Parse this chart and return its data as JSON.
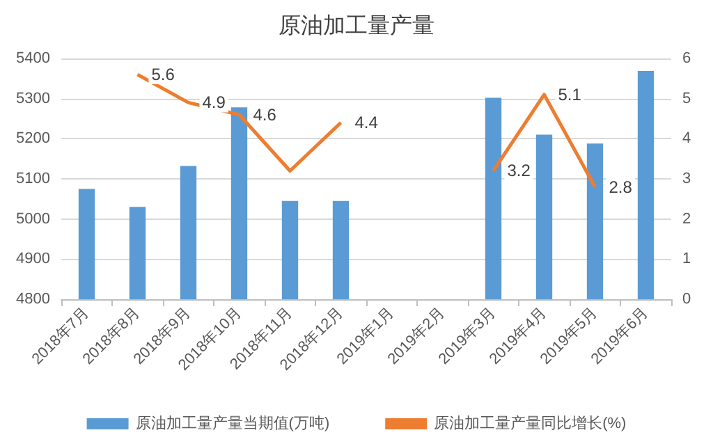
{
  "chart_data": {
    "type": "bar",
    "title": "原油加工量产量",
    "categories": [
      "2018年7月",
      "2018年8月",
      "2018年9月",
      "2018年10月",
      "2018年11月",
      "2018年12月",
      "2019年1月",
      "2019年2月",
      "2019年3月",
      "2019年4月",
      "2019年5月",
      "2019年6月"
    ],
    "series": [
      {
        "name": "原油加工量产量当期值(万吨)",
        "color": "#5b9bd5",
        "values": [
          5075,
          5030,
          5132,
          5278,
          5045,
          5045,
          null,
          null,
          5302,
          5210,
          5188,
          5369
        ]
      },
      {
        "name": "原油加工量产量同比增长(%)",
        "type": "line",
        "axis": "y2",
        "color": "#ed7d31",
        "values": [
          null,
          5.6,
          4.9,
          4.6,
          3.2,
          4.4,
          null,
          null,
          3.2,
          5.1,
          2.8,
          null
        ],
        "value_labels": [
          null,
          "5.6",
          "4.9",
          "4.6",
          null,
          "4.4",
          null,
          null,
          "3.2",
          "5.1",
          "2.8",
          null
        ]
      }
    ],
    "ylim": [
      4800,
      5400
    ],
    "yticks": [
      4800,
      4900,
      5000,
      5100,
      5200,
      5300,
      5400
    ],
    "y2lim": [
      0,
      6
    ],
    "y2ticks": [
      0,
      1,
      2,
      3,
      4,
      5,
      6
    ],
    "grid": "y",
    "legend": "bottom",
    "marker": "none"
  }
}
